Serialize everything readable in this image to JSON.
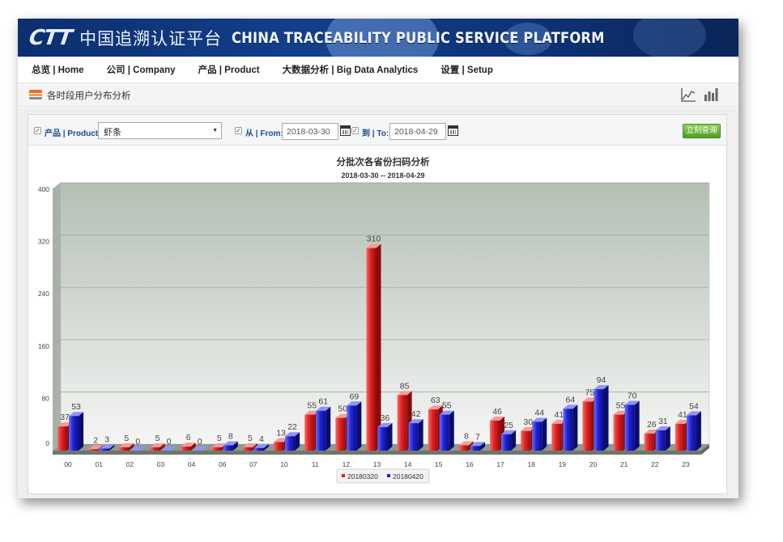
{
  "banner": {
    "logo_mark": "CTT",
    "title_cn": "中国追溯认证平台",
    "title_en": "CHINA TRACEABILITY PUBLIC SERVICE PLATFORM"
  },
  "menu": {
    "items": [
      {
        "label": "总览 | Home"
      },
      {
        "label": "公司 | Company"
      },
      {
        "label": "产品 | Product"
      },
      {
        "label": "大数据分析 | Big Data Analytics"
      },
      {
        "label": "设置 | Setup"
      }
    ]
  },
  "subheader": {
    "title": "各时段用户分布分析",
    "icons": [
      "line-chart-icon",
      "bar-chart-icon"
    ]
  },
  "filters": {
    "product_label": "产品 | Product:",
    "product_value": "虾条",
    "from_label": "从 | From:",
    "from_value": "2018-03-30",
    "to_label": "到 | To:",
    "to_value": "2018-04-29",
    "query_button": "立刻查询"
  },
  "colors": {
    "series1": "#e02020",
    "series2": "#1e22d8",
    "plot_bg_top": "#b4bfb4",
    "plot_bg_bottom": "#f4f5f4",
    "query_button": "#5aaa2c"
  },
  "chart_data": {
    "type": "bar",
    "title": "分批次各省份扫码分析",
    "subtitle": "2018-03-30 -- 2018-04-29",
    "categories": [
      "00",
      "01",
      "02",
      "03",
      "04",
      "06",
      "07",
      "10",
      "11",
      "12",
      "13",
      "14",
      "15",
      "16",
      "17",
      "18",
      "19",
      "20",
      "21",
      "22",
      "23"
    ],
    "series": [
      {
        "name": "20180320",
        "values": [
          37,
          2,
          5,
          5,
          6,
          5,
          5,
          13,
          55,
          50,
          310,
          85,
          63,
          8,
          46,
          30,
          41,
          75,
          55,
          26,
          41
        ]
      },
      {
        "name": "20180420",
        "values": [
          53,
          3,
          0,
          0,
          0,
          8,
          4,
          22,
          61,
          69,
          36,
          42,
          55,
          7,
          25,
          44,
          64,
          94,
          70,
          31,
          54
        ]
      }
    ],
    "ylim": [
      0,
      400
    ],
    "yticks": [
      0,
      80,
      160,
      240,
      320,
      400
    ],
    "grid": true,
    "legend_position": "bottom-center",
    "style": "3d"
  }
}
